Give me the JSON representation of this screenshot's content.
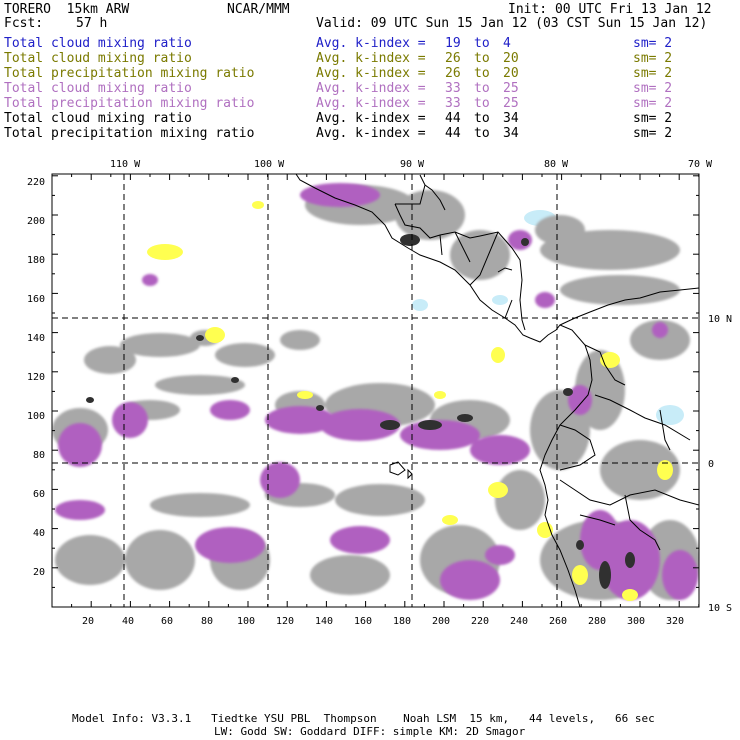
{
  "header": {
    "model_name": "TORERO  15km ARW",
    "org": "NCAR/MMM",
    "init": "Init: 00 UTC Fri 13 Jan 12",
    "fcst_label": "Fcst:",
    "fcst_value": "57 h",
    "valid": "Valid: 09 UTC Sun 15 Jan 12 (03 CST Sun 15 Jan 12)"
  },
  "legend": [
    {
      "label": "Total cloud mixing ratio",
      "kindex_label": "Avg. k-index =",
      "k1": "19",
      "to": "to",
      "k2": "4",
      "sm": "sm= 2",
      "color": "#2020c8"
    },
    {
      "label": "Total cloud mixing ratio",
      "kindex_label": "Avg. k-index =",
      "k1": "26",
      "to": "to",
      "k2": "20",
      "sm": "sm= 2",
      "color": "#7a7a00"
    },
    {
      "label": "Total precipitation mixing ratio",
      "kindex_label": "Avg. k-index =",
      "k1": "26",
      "to": "to",
      "k2": "20",
      "sm": "sm= 2",
      "color": "#7a7a00"
    },
    {
      "label": "Total cloud mixing ratio",
      "kindex_label": "Avg. k-index =",
      "k1": "33",
      "to": "to",
      "k2": "25",
      "sm": "sm= 2",
      "color": "#b070c0"
    },
    {
      "label": "Total precipitation mixing ratio",
      "kindex_label": "Avg. k-index =",
      "k1": "33",
      "to": "to",
      "k2": "25",
      "sm": "sm= 2",
      "color": "#b070c0"
    },
    {
      "label": "Total cloud mixing ratio",
      "kindex_label": "Avg. k-index =",
      "k1": "44",
      "to": "to",
      "k2": "34",
      "sm": "sm= 2",
      "color": "#000000"
    },
    {
      "label": "Total precipitation mixing ratio",
      "kindex_label": "Avg. k-index =",
      "k1": "44",
      "to": "to",
      "k2": "34",
      "sm": "sm= 2",
      "color": "#000000"
    }
  ],
  "map": {
    "lon_labels": [
      "110 W",
      "100 W",
      "90 W",
      "80 W",
      "70 W"
    ],
    "lat_labels": [
      "10 N",
      "0",
      "10 S"
    ],
    "x_ticks": [
      "20",
      "40",
      "60",
      "80",
      "100",
      "120",
      "140",
      "160",
      "180",
      "200",
      "220",
      "240",
      "260",
      "280",
      "300",
      "320"
    ],
    "y_ticks": [
      "20",
      "40",
      "60",
      "80",
      "100",
      "120",
      "140",
      "160",
      "180",
      "200",
      "220"
    ],
    "colors": {
      "cloud_gray": "#a8a8a8",
      "cloud_dark": "#303030",
      "purple": "#b060c0",
      "yellow": "#ffff50",
      "light_blue": "#c8ecf8"
    }
  },
  "footer": {
    "line1": "Model Info: V3.3.1   Tiedtke YSU PBL  Thompson    Noah LSM  15 km,   44 levels,   66 sec",
    "line2": "LW: Godd SW: Goddard DIFF: simple KM: 2D Smagor"
  }
}
